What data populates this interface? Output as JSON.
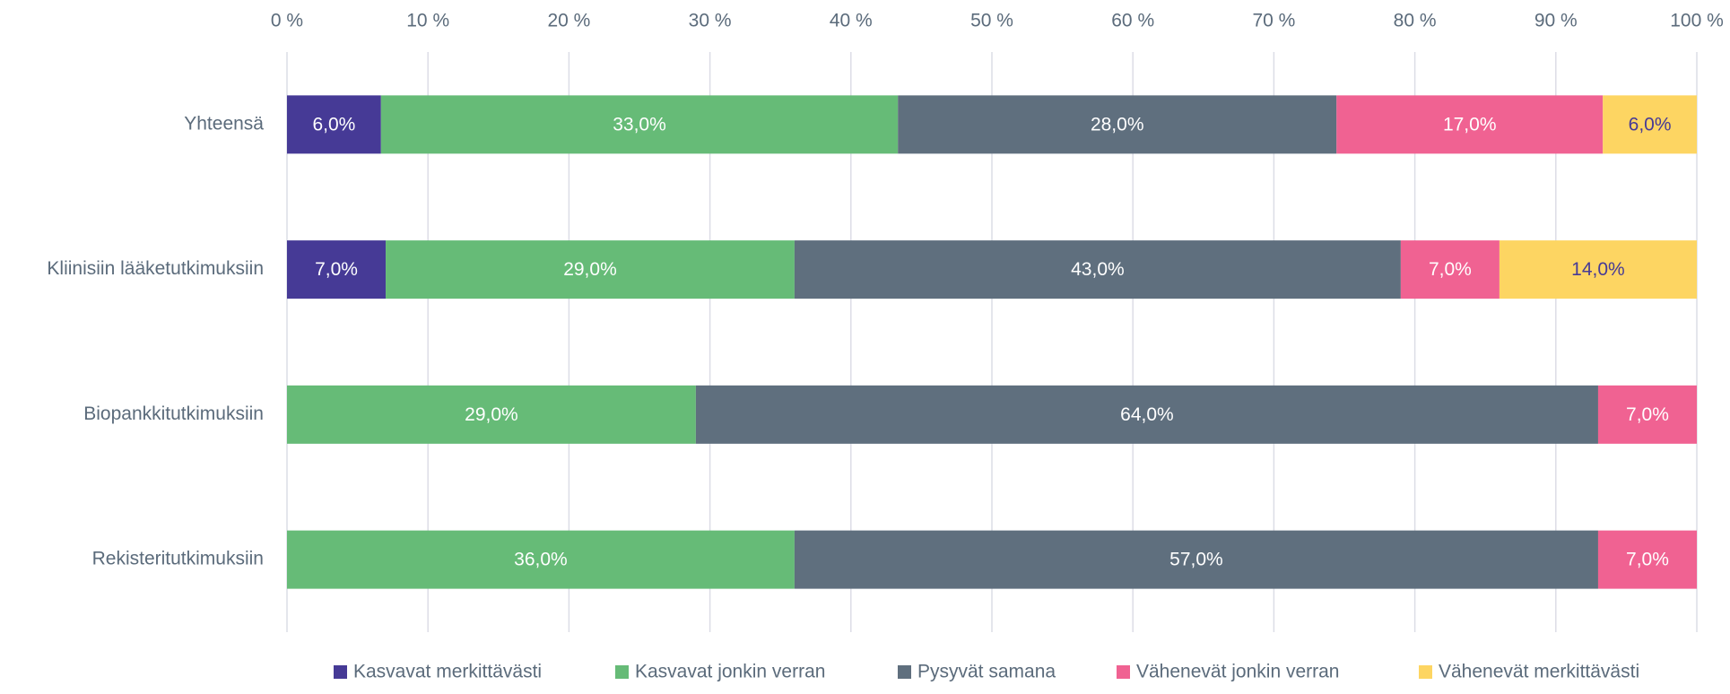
{
  "chart_data": {
    "type": "bar",
    "orientation": "horizontal",
    "stacked": "percent",
    "categories": [
      "Yhteensä",
      "Kliinisiin lääketutkimuksiin",
      "Biopankkitutkimuksiin",
      "Rekisteritutkimuksiin"
    ],
    "series": [
      {
        "name": "Kasvavat merkittävästi",
        "color": "#463a96",
        "values": [
          6,
          7,
          null,
          null
        ],
        "value_labels": [
          "6,0%",
          "7,0%",
          null,
          null
        ]
      },
      {
        "name": "Kasvavat jonkin verran",
        "color": "#66bb77",
        "values": [
          33,
          29,
          29,
          36
        ],
        "value_labels": [
          "33,0%",
          "29,0%",
          "29,0%",
          "36,0%"
        ]
      },
      {
        "name": "Pysyvät samana",
        "color": "#5f6f7e",
        "values": [
          28,
          43,
          64,
          57
        ],
        "value_labels": [
          "28,0%",
          "43,0%",
          "64,0%",
          "57,0%"
        ]
      },
      {
        "name": "Vähenevät jonkin verran",
        "color": "#f06292",
        "values": [
          17,
          7,
          7,
          7
        ],
        "value_labels": [
          "17,0%",
          "7,0%",
          "7,0%",
          "7,0%"
        ]
      },
      {
        "name": "Vähenevät merkittävästi",
        "color": "#fdd562",
        "values": [
          6,
          14,
          null,
          null
        ],
        "value_labels": [
          "6,0%",
          "14,0%",
          null,
          null
        ]
      }
    ],
    "xlim": [
      0,
      100
    ],
    "xticks": [
      {
        "value": 0,
        "label": "0 %"
      },
      {
        "value": 10,
        "label": "10 %"
      },
      {
        "value": 20,
        "label": "20 %"
      },
      {
        "value": 30,
        "label": "30 %"
      },
      {
        "value": 40,
        "label": "40 %"
      },
      {
        "value": 50,
        "label": "50 %"
      },
      {
        "value": 60,
        "label": "60 %"
      },
      {
        "value": 70,
        "label": "70 %"
      },
      {
        "value": 80,
        "label": "80 %"
      },
      {
        "value": 90,
        "label": "90 %"
      },
      {
        "value": 100,
        "label": "100 %"
      }
    ],
    "grid": true,
    "legend": "bottom"
  }
}
